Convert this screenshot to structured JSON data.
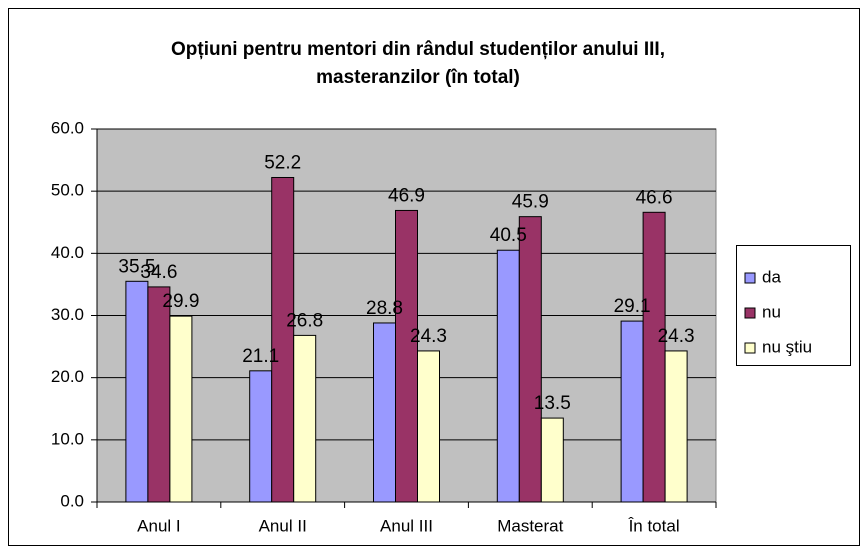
{
  "chart_data": {
    "type": "bar",
    "title": [
      "Opțiuni pentru mentori din rândul studenților anului III,",
      "masteranzilor (în total)"
    ],
    "categories": [
      "Anul I",
      "Anul II",
      "Anul III",
      "Masterat",
      "În total"
    ],
    "series": [
      {
        "name": "da",
        "color": "#9999ff",
        "values": [
          35.5,
          21.1,
          28.8,
          40.5,
          29.1
        ]
      },
      {
        "name": "nu",
        "color": "#993366",
        "values": [
          34.6,
          52.2,
          46.9,
          45.9,
          46.6
        ]
      },
      {
        "name": "nu ştiu",
        "color": "#ffffcc",
        "values": [
          29.9,
          26.8,
          24.3,
          13.5,
          24.3
        ]
      }
    ],
    "ylim": [
      0,
      60
    ],
    "yticks": [
      {
        "value": 0,
        "label": "0.0"
      },
      {
        "value": 10,
        "label": "10.0"
      },
      {
        "value": 20,
        "label": "20.0"
      },
      {
        "value": 30,
        "label": "30.0"
      },
      {
        "value": 40,
        "label": "40.0"
      },
      {
        "value": 50,
        "label": "50.0"
      },
      {
        "value": 60,
        "label": "60.0"
      }
    ],
    "grid": true,
    "legend": "right",
    "plot_background": "#c0c0c0"
  }
}
